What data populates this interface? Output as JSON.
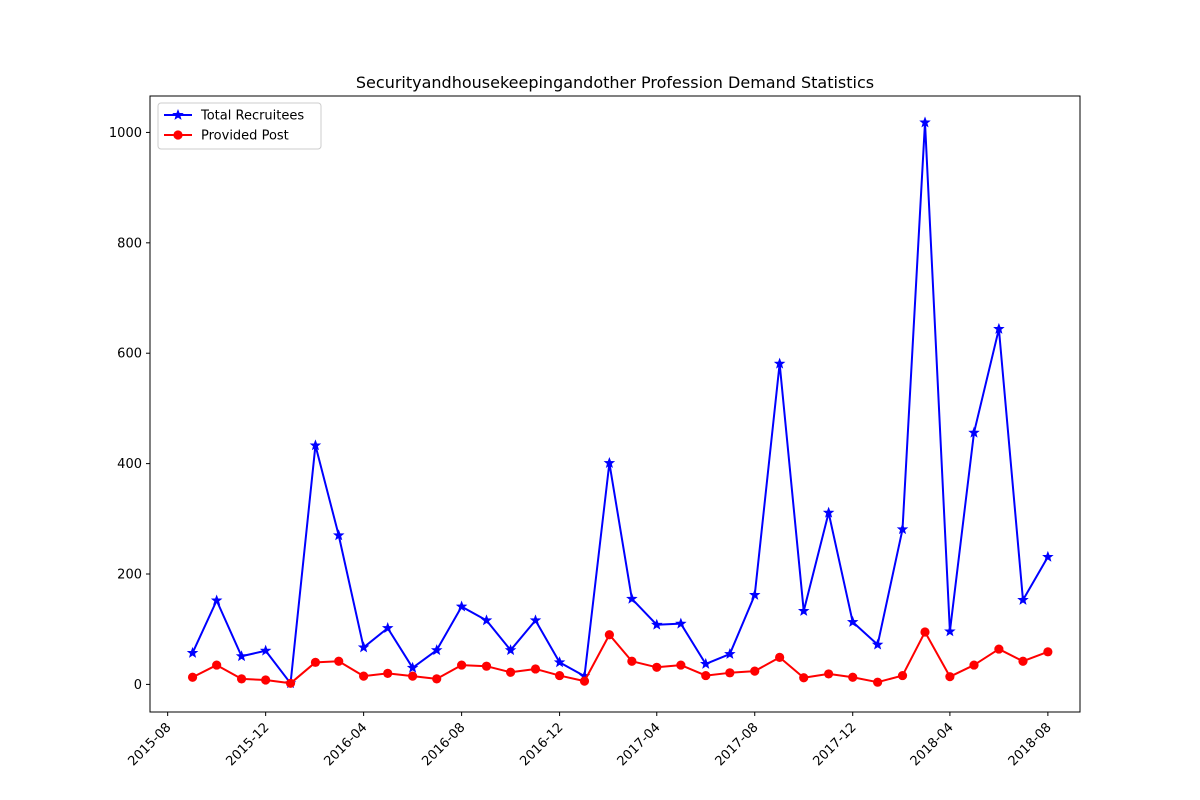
{
  "chart_data": {
    "type": "line",
    "title": "Securityandhousekeepingandother Profession Demand Statistics",
    "xlabel": "",
    "ylabel": "",
    "x_axis": {
      "type": "date",
      "range": [
        "2015-07-10",
        "2018-09-10"
      ],
      "ticks": [
        "2015-08-01",
        "2015-12-01",
        "2016-04-01",
        "2016-08-01",
        "2016-12-01",
        "2017-04-01",
        "2017-08-01",
        "2017-12-01",
        "2018-04-01",
        "2018-08-01"
      ],
      "tick_labels": [
        "2015-08",
        "2015-12",
        "2016-04",
        "2016-08",
        "2016-12",
        "2017-04",
        "2017-08",
        "2017-12",
        "2018-04",
        "2018-08"
      ]
    },
    "y_axis": {
      "range": [
        -50,
        1066
      ],
      "ticks": [
        0,
        200,
        400,
        600,
        800,
        1000
      ],
      "tick_labels": [
        "0",
        "200",
        "400",
        "600",
        "800",
        "1000"
      ]
    },
    "grid": false,
    "legend": {
      "placement": "upper-left",
      "entries": [
        "Total Recruitees",
        "Provided Post"
      ]
    },
    "x": [
      "2015-09-01",
      "2015-10-01",
      "2015-11-01",
      "2015-12-01",
      "2016-01-01",
      "2016-02-01",
      "2016-03-01",
      "2016-04-01",
      "2016-05-01",
      "2016-06-01",
      "2016-07-01",
      "2016-08-01",
      "2016-09-01",
      "2016-10-01",
      "2016-11-01",
      "2016-12-01",
      "2017-01-01",
      "2017-02-01",
      "2017-03-01",
      "2017-04-01",
      "2017-05-01",
      "2017-06-01",
      "2017-07-01",
      "2017-08-01",
      "2017-09-01",
      "2017-10-01",
      "2017-11-01",
      "2017-12-01",
      "2018-01-01",
      "2018-02-01",
      "2018-03-01",
      "2018-04-01",
      "2018-05-01",
      "2018-06-01",
      "2018-07-01",
      "2018-08-01"
    ],
    "series": [
      {
        "name": "Total Recruitees",
        "color": "#0000ff",
        "marker": "star",
        "values": [
          57,
          152,
          51,
          61,
          2,
          433,
          270,
          67,
          102,
          30,
          62,
          141,
          116,
          62,
          116,
          40,
          15,
          401,
          155,
          108,
          110,
          37,
          55,
          162,
          581,
          133,
          311,
          113,
          72,
          281,
          1018,
          96,
          456,
          644,
          153,
          231
        ]
      },
      {
        "name": "Provided Post",
        "color": "#ff0000",
        "marker": "circle",
        "values": [
          13,
          35,
          10,
          8,
          2,
          40,
          42,
          15,
          20,
          15,
          10,
          35,
          33,
          22,
          28,
          16,
          6,
          90,
          42,
          31,
          35,
          16,
          21,
          24,
          49,
          12,
          19,
          13,
          4,
          16,
          95,
          14,
          35,
          64,
          42,
          59
        ]
      }
    ]
  }
}
